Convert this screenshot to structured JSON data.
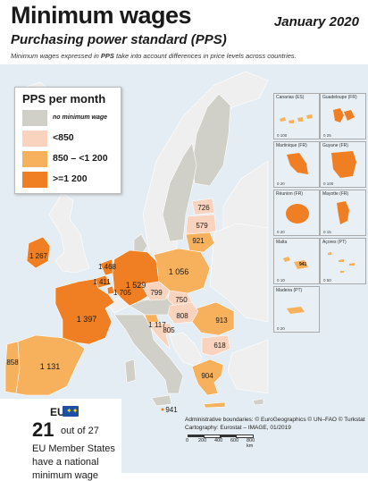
{
  "header": {
    "title": "Minimum wages",
    "subtitle": "Purchasing power standard (PPS)",
    "date": "January 2020",
    "note_prefix": "Minimum wages expressed in ",
    "note_bold": "PPS",
    "note_suffix": " take into account differences in price levels across countries."
  },
  "legend": {
    "title": "PPS per month",
    "items": [
      {
        "label": "no minimum wage",
        "color": "#d0d0c8"
      },
      {
        "label": "<850",
        "color": "#f9d3bd"
      },
      {
        "label": "850 – <1 200",
        "color": "#f7b05c"
      },
      {
        "label": ">=1 200",
        "color": "#ef7f22"
      }
    ]
  },
  "colors": {
    "sea": "#e4edf3",
    "non_eu": "#efefef",
    "no_wage": "#d0d0c8",
    "low": "#f9d3bd",
    "mid": "#f7b05c",
    "high": "#ef7f22"
  },
  "countries": {
    "IE": {
      "value": "1 267"
    },
    "NL": {
      "value": "1 468"
    },
    "BE": {
      "value": "1 411"
    },
    "LU": {
      "value": "1 705"
    },
    "DE": {
      "value": "1 529"
    },
    "FR": {
      "value": "1 397"
    },
    "PT": {
      "value": "858"
    },
    "ES": {
      "value": "1 131"
    },
    "PL": {
      "value": "1 056"
    },
    "CZ": {
      "value": "799"
    },
    "SK": {
      "value": "750"
    },
    "HU": {
      "value": "808"
    },
    "SI": {
      "value": "1 117"
    },
    "HR": {
      "value": "805"
    },
    "RO": {
      "value": "913"
    },
    "BG": {
      "value": "618"
    },
    "GR": {
      "value": "904"
    },
    "EE": {
      "value": "726"
    },
    "LV": {
      "value": "579"
    },
    "LT": {
      "value": "921"
    },
    "MT": {
      "value": "941"
    }
  },
  "insets": [
    {
      "name": "Canarias (ES)",
      "scale": "0    100"
    },
    {
      "name": "Guadeloupe (FR)",
      "scale": "0    25"
    },
    {
      "name": "Martinique (FR)",
      "scale": "0    20"
    },
    {
      "name": "Guyane (FR)",
      "scale": "0    100"
    },
    {
      "name": "Réunion (FR)",
      "scale": "0    20"
    },
    {
      "name": "Mayotte (FR)",
      "scale": "0    15"
    },
    {
      "name": "Malta",
      "scale": "0    10",
      "value": "941"
    },
    {
      "name": "Açores (PT)",
      "scale": "0    50"
    },
    {
      "name": "Madeira (PT)",
      "scale": "0    20"
    }
  ],
  "footer": {
    "eu_label": "EU",
    "count": "21",
    "out_of": "out of 27",
    "line1": "EU Member States",
    "line2": "have a national",
    "line3": "minimum wage"
  },
  "credits": {
    "line1": "Administrative boundaries: © EuroGeographics © UN–FAO © Turkstat",
    "line2": "Cartography: Eurostat – IMAGE, 01/2019"
  },
  "scalebar": {
    "labels": [
      "0",
      "200",
      "400",
      "600",
      "800 km"
    ]
  }
}
